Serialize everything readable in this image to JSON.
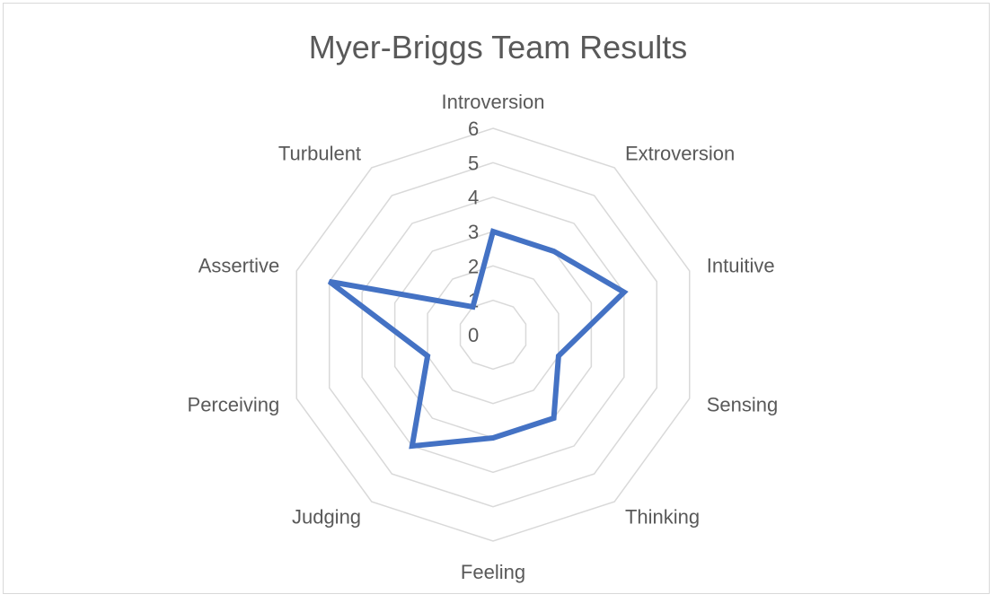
{
  "chart_data": {
    "type": "radar",
    "title": "Myer-Briggs Team Results",
    "categories": [
      "Introversion",
      "Extroversion",
      "Intuitive",
      "Sensing",
      "Thinking",
      "Feeling",
      "Judging",
      "Perceiving",
      "Assertive",
      "Turbulent"
    ],
    "series": [
      {
        "values": [
          3,
          3,
          4,
          2,
          3,
          3,
          4,
          2,
          5,
          1
        ],
        "color": "#4472C4"
      }
    ],
    "r_ticks": [
      "0",
      "1",
      "2",
      "3",
      "4",
      "5",
      "6"
    ],
    "rlim": [
      0,
      6
    ],
    "grid": true,
    "grid_shape": "decagon",
    "legend": "none"
  }
}
